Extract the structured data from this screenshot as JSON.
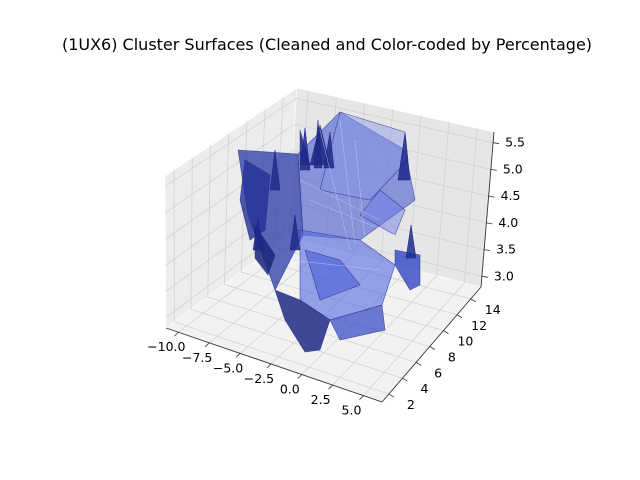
{
  "chart_data": {
    "type": "surface3d",
    "title": "(1UX6) Cluster Surfaces (Cleaned and Color-coded by Percentage)",
    "xlabel": "",
    "ylabel": "",
    "zlabel": "",
    "x_ticks": [
      "−10.0",
      "−7.5",
      "−5.0",
      "−2.5",
      "0.0",
      "2.5",
      "5.0"
    ],
    "y_ticks": [
      "2",
      "4",
      "6",
      "8",
      "10",
      "12",
      "14"
    ],
    "z_ticks": [
      "3.0",
      "3.5",
      "4.0",
      "4.5",
      "5.0",
      "5.5"
    ],
    "xlim": [
      -11,
      6.5
    ],
    "ylim": [
      1,
      15.5
    ],
    "zlim": [
      2.8,
      5.7
    ],
    "grid": true,
    "surface_color": "#3a4fd0",
    "surface_edge_color": "#1a2580"
  }
}
